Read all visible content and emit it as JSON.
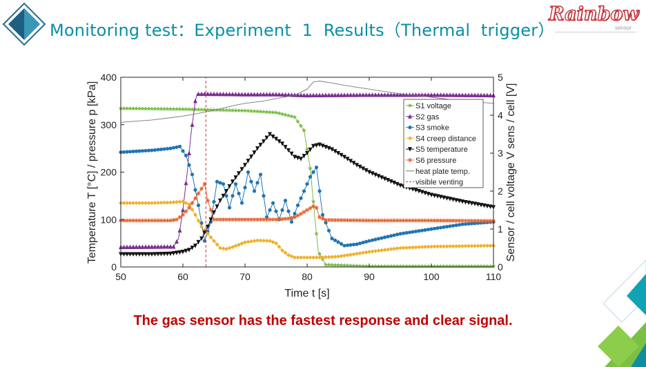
{
  "slide": {
    "title": "Monitoring test：Experiment  1  Results（Thermal  trigger）",
    "conclusion": "The gas sensor has the fastest response and clear signal.",
    "logo": {
      "name": "Rainbow",
      "tagline": "sensor"
    },
    "colors": {
      "title": "#0a8fa6",
      "conclusion": "#c00000",
      "logo": "#c3303a"
    }
  },
  "chart_data": {
    "type": "line",
    "title": "",
    "xlabel": "Time t [s]",
    "ylabel_left": "Temperature T [°C] / pressure p [kPa]",
    "ylabel_right": "Sensor / cell voltage V sens / cell [V]",
    "xlim": [
      50,
      110
    ],
    "ylim_left": [
      0,
      400
    ],
    "ylim_right": [
      0,
      5
    ],
    "x_ticks": [
      50,
      60,
      70,
      80,
      90,
      100,
      110
    ],
    "y_left_ticks": [
      0,
      100,
      200,
      300,
      400
    ],
    "y_right_ticks": [
      0,
      1,
      2,
      3,
      4,
      5
    ],
    "legend_position": "top-right",
    "series": [
      {
        "name": "S1 voltage",
        "axis": "right",
        "color": "#77bb44",
        "marker": "star",
        "x": [
          50,
          60,
          70,
          75,
          78,
          79.5,
          80.5,
          81.3,
          81.8,
          83,
          90,
          100,
          110
        ],
        "y": [
          4.18,
          4.16,
          4.12,
          4.07,
          3.95,
          3.6,
          2.6,
          1.2,
          0.4,
          0.06,
          0.02,
          0.02,
          0.02
        ]
      },
      {
        "name": "S2 gas",
        "axis": "left",
        "color": "#7a2d8e",
        "marker": "triangle",
        "x": [
          50,
          58.5,
          59.3,
          60,
          60.7,
          61.3,
          62,
          62.3,
          63,
          70,
          75,
          80,
          90,
          100,
          110
        ],
        "y": [
          42,
          43,
          60,
          120,
          200,
          280,
          350,
          365,
          365,
          364,
          364,
          362,
          363,
          363,
          362
        ]
      },
      {
        "name": "S3 smoke",
        "axis": "left",
        "color": "#1f74b5",
        "marker": "circle",
        "x": [
          50,
          55,
          58,
          59.5,
          60.5,
          61.5,
          62.5,
          63.5,
          64.5,
          65.5,
          66.5,
          67.5,
          68.5,
          69.5,
          70.5,
          71.5,
          72.5,
          73.5,
          74.5,
          75.5,
          76.5,
          77.5,
          78.5,
          79.5,
          80.5,
          81.5,
          82.5,
          84,
          86,
          88,
          90,
          95,
          100,
          105,
          110
        ],
        "y": [
          242,
          246,
          250,
          254,
          235,
          195,
          130,
          55,
          95,
          180,
          175,
          125,
          175,
          135,
          200,
          160,
          195,
          105,
          135,
          100,
          140,
          95,
          130,
          160,
          190,
          210,
          110,
          60,
          45,
          48,
          55,
          70,
          80,
          90,
          95
        ]
      },
      {
        "name": "S4 creep distance",
        "axis": "left",
        "color": "#f0b02a",
        "marker": "diamond",
        "x": [
          50,
          55,
          58,
          60,
          61,
          62,
          63,
          64,
          65,
          66,
          67,
          68,
          70,
          72,
          74,
          75,
          76,
          77,
          78,
          79,
          80,
          82,
          85,
          90,
          95,
          100,
          105,
          110
        ],
        "y": [
          135,
          135,
          136,
          138,
          132,
          110,
          85,
          70,
          55,
          40,
          38,
          42,
          52,
          56,
          55,
          50,
          35,
          25,
          20,
          20,
          20,
          20,
          22,
          32,
          40,
          43,
          44,
          45
        ]
      },
      {
        "name": "S5 temperature",
        "axis": "left",
        "color": "#111111",
        "marker": "triangle-down",
        "x": [
          50,
          55,
          58,
          60,
          61,
          62,
          63,
          64,
          65,
          66,
          68,
          70,
          72,
          74,
          76,
          78,
          79,
          80,
          81,
          82,
          84,
          86,
          88,
          90,
          95,
          100,
          105,
          110
        ],
        "y": [
          27,
          27,
          28,
          32,
          36,
          45,
          60,
          85,
          115,
          140,
          180,
          215,
          250,
          280,
          260,
          232,
          228,
          240,
          255,
          258,
          248,
          232,
          215,
          200,
          172,
          152,
          138,
          126
        ]
      },
      {
        "name": "S6 pressure",
        "axis": "left",
        "color": "#e8612c",
        "marker": "asterisk",
        "x": [
          50,
          55,
          58,
          59,
          60,
          61,
          62,
          63,
          63.5,
          64,
          65,
          66,
          70,
          75,
          77,
          78,
          79,
          80,
          81,
          81.5,
          82,
          83,
          90,
          100,
          110
        ],
        "y": [
          98,
          98,
          98,
          100,
          110,
          125,
          145,
          165,
          175,
          140,
          100,
          100,
          100,
          100,
          102,
          105,
          112,
          120,
          128,
          125,
          105,
          99,
          98,
          98,
          97
        ]
      },
      {
        "name": "heat plate temp.",
        "axis": "left",
        "color": "#777777",
        "marker": "none",
        "x": [
          50,
          55,
          60,
          65,
          68,
          70,
          73,
          75,
          78,
          80,
          81,
          82,
          84,
          86,
          90,
          95,
          100,
          105,
          110
        ],
        "y": [
          305,
          310,
          318,
          330,
          340,
          345,
          350,
          355,
          362,
          375,
          390,
          392,
          388,
          383,
          375,
          365,
          358,
          350,
          345
        ]
      },
      {
        "name": "visible venting",
        "axis": "left",
        "color": "#c8323e",
        "marker": "none",
        "style": "dashed-vertical",
        "x": [
          63.7,
          63.7
        ],
        "y": [
          0,
          400
        ]
      }
    ]
  }
}
